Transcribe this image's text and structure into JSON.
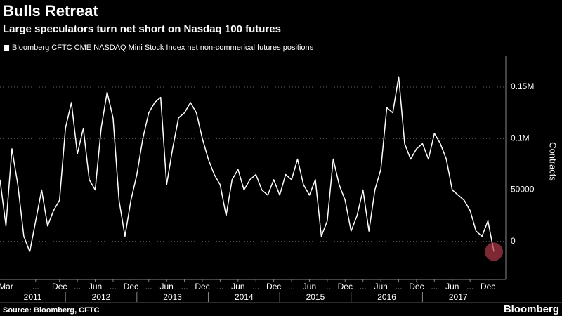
{
  "chart_data": {
    "type": "line",
    "title": "Bulls Retreat",
    "subtitle": "Large speculators turn net short on Nasdaq 100 futures",
    "y_label": "Contracts",
    "source": "Source: Bloomberg, CFTC",
    "brand": "Bloomberg",
    "x": [
      "2011-02",
      "2011-03",
      "2011-04",
      "2011-05",
      "2011-06",
      "2011-07",
      "2011-08",
      "2011-09",
      "2011-10",
      "2011-11",
      "2011-12",
      "2012-01",
      "2012-02",
      "2012-03",
      "2012-04",
      "2012-05",
      "2012-06",
      "2012-07",
      "2012-08",
      "2012-09",
      "2012-10",
      "2012-11",
      "2012-12",
      "2013-01",
      "2013-02",
      "2013-03",
      "2013-04",
      "2013-05",
      "2013-06",
      "2013-07",
      "2013-08",
      "2013-09",
      "2013-10",
      "2013-11",
      "2013-12",
      "2014-01",
      "2014-02",
      "2014-03",
      "2014-04",
      "2014-05",
      "2014-06",
      "2014-07",
      "2014-08",
      "2014-09",
      "2014-10",
      "2014-11",
      "2014-12",
      "2015-01",
      "2015-02",
      "2015-03",
      "2015-04",
      "2015-05",
      "2015-06",
      "2015-07",
      "2015-08",
      "2015-09",
      "2015-10",
      "2015-11",
      "2015-12",
      "2016-01",
      "2016-02",
      "2016-03",
      "2016-04",
      "2016-05",
      "2016-06",
      "2016-07",
      "2016-08",
      "2016-09",
      "2016-10",
      "2016-11",
      "2016-12",
      "2017-01",
      "2017-02",
      "2017-03",
      "2017-04",
      "2017-05",
      "2017-06",
      "2017-07",
      "2017-08",
      "2017-09",
      "2017-10",
      "2017-11",
      "2017-12",
      "2018-01"
    ],
    "series": [
      {
        "name": "Bloomberg CFTC CME NASDAQ Mini Stock Index net non-commerical futures positions",
        "color": "#ffffff",
        "values": [
          60000,
          15000,
          90000,
          55000,
          5000,
          -10000,
          20000,
          50000,
          15000,
          30000,
          40000,
          110000,
          135000,
          85000,
          110000,
          60000,
          50000,
          110000,
          145000,
          120000,
          40000,
          5000,
          40000,
          65000,
          100000,
          125000,
          135000,
          140000,
          55000,
          90000,
          120000,
          125000,
          135000,
          125000,
          100000,
          80000,
          65000,
          55000,
          25000,
          60000,
          70000,
          50000,
          60000,
          65000,
          50000,
          45000,
          60000,
          45000,
          65000,
          60000,
          80000,
          55000,
          45000,
          60000,
          5000,
          20000,
          80000,
          55000,
          40000,
          10000,
          25000,
          50000,
          10000,
          50000,
          70000,
          130000,
          125000,
          160000,
          95000,
          80000,
          90000,
          95000,
          80000,
          105000,
          95000,
          80000,
          50000,
          45000,
          40000,
          30000,
          10000,
          5000,
          20000,
          -10000
        ]
      }
    ],
    "xlim": [
      "2011-02",
      "2018-03"
    ],
    "xticks": [
      {
        "value": "2011-03",
        "label": "Mar"
      },
      {
        "value": "2011-08",
        "label": "..."
      },
      {
        "value": "2011-12",
        "label": "Dec"
      },
      {
        "value": "2012-03",
        "label": "..."
      },
      {
        "value": "2012-06",
        "label": "Jun"
      },
      {
        "value": "2012-09",
        "label": "..."
      },
      {
        "value": "2012-12",
        "label": "Dec"
      },
      {
        "value": "2013-03",
        "label": "..."
      },
      {
        "value": "2013-06",
        "label": "Jun"
      },
      {
        "value": "2013-09",
        "label": "..."
      },
      {
        "value": "2013-12",
        "label": "Dec"
      },
      {
        "value": "2014-03",
        "label": "..."
      },
      {
        "value": "2014-06",
        "label": "Jun"
      },
      {
        "value": "2014-09",
        "label": "..."
      },
      {
        "value": "2014-12",
        "label": "Dec"
      },
      {
        "value": "2015-03",
        "label": "..."
      },
      {
        "value": "2015-06",
        "label": "Jun"
      },
      {
        "value": "2015-09",
        "label": "..."
      },
      {
        "value": "2015-12",
        "label": "Dec"
      },
      {
        "value": "2016-03",
        "label": "..."
      },
      {
        "value": "2016-06",
        "label": "Jun"
      },
      {
        "value": "2016-09",
        "label": "..."
      },
      {
        "value": "2016-12",
        "label": "Dec"
      },
      {
        "value": "2017-03",
        "label": "..."
      },
      {
        "value": "2017-06",
        "label": "Jun"
      },
      {
        "value": "2017-09",
        "label": "..."
      },
      {
        "value": "2017-12",
        "label": "Dec"
      }
    ],
    "years": [
      "2011",
      "2012",
      "2013",
      "2014",
      "2015",
      "2016",
      "2017"
    ],
    "ylim": [
      -37000,
      180000
    ],
    "yticks": [
      0,
      50000,
      {
        "value": 100000,
        "label": "0.1M"
      },
      {
        "value": 150000,
        "label": "0.15M"
      }
    ],
    "grid": true,
    "highlight_color": "#b03a48"
  }
}
